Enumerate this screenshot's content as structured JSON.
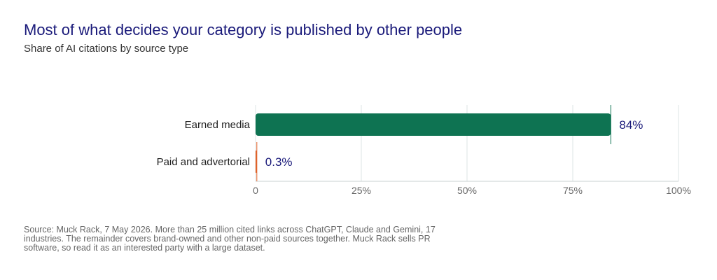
{
  "title": "Most of what decides your category is published by other people",
  "subtitle": "Share of AI citations by source type",
  "source": "Source: Muck Rack, 7 May 2026. More than 25 million cited links across ChatGPT, Claude and Gemini, 17 industries. The remainder covers brand-owned and other non-paid sources together. Muck Rack sells PR software, so read it as an interested party with a large dataset.",
  "chart_data": {
    "type": "bar",
    "orientation": "horizontal",
    "title": "Most of what decides your category is published by other people",
    "subtitle": "Share of AI citations by source type",
    "categories": [
      "Earned media",
      "Paid and advertorial"
    ],
    "values": [
      84,
      0.3
    ],
    "data_labels": [
      "84%",
      "0.3%"
    ],
    "colors": [
      "#0e7352",
      "#e0622a"
    ],
    "xlim": [
      0,
      100
    ],
    "x_ticks": [
      0,
      25,
      50,
      75,
      100
    ],
    "x_tick_labels": [
      "0",
      "25%",
      "50%",
      "75%",
      "100%"
    ],
    "grid": true,
    "legend": "none"
  }
}
